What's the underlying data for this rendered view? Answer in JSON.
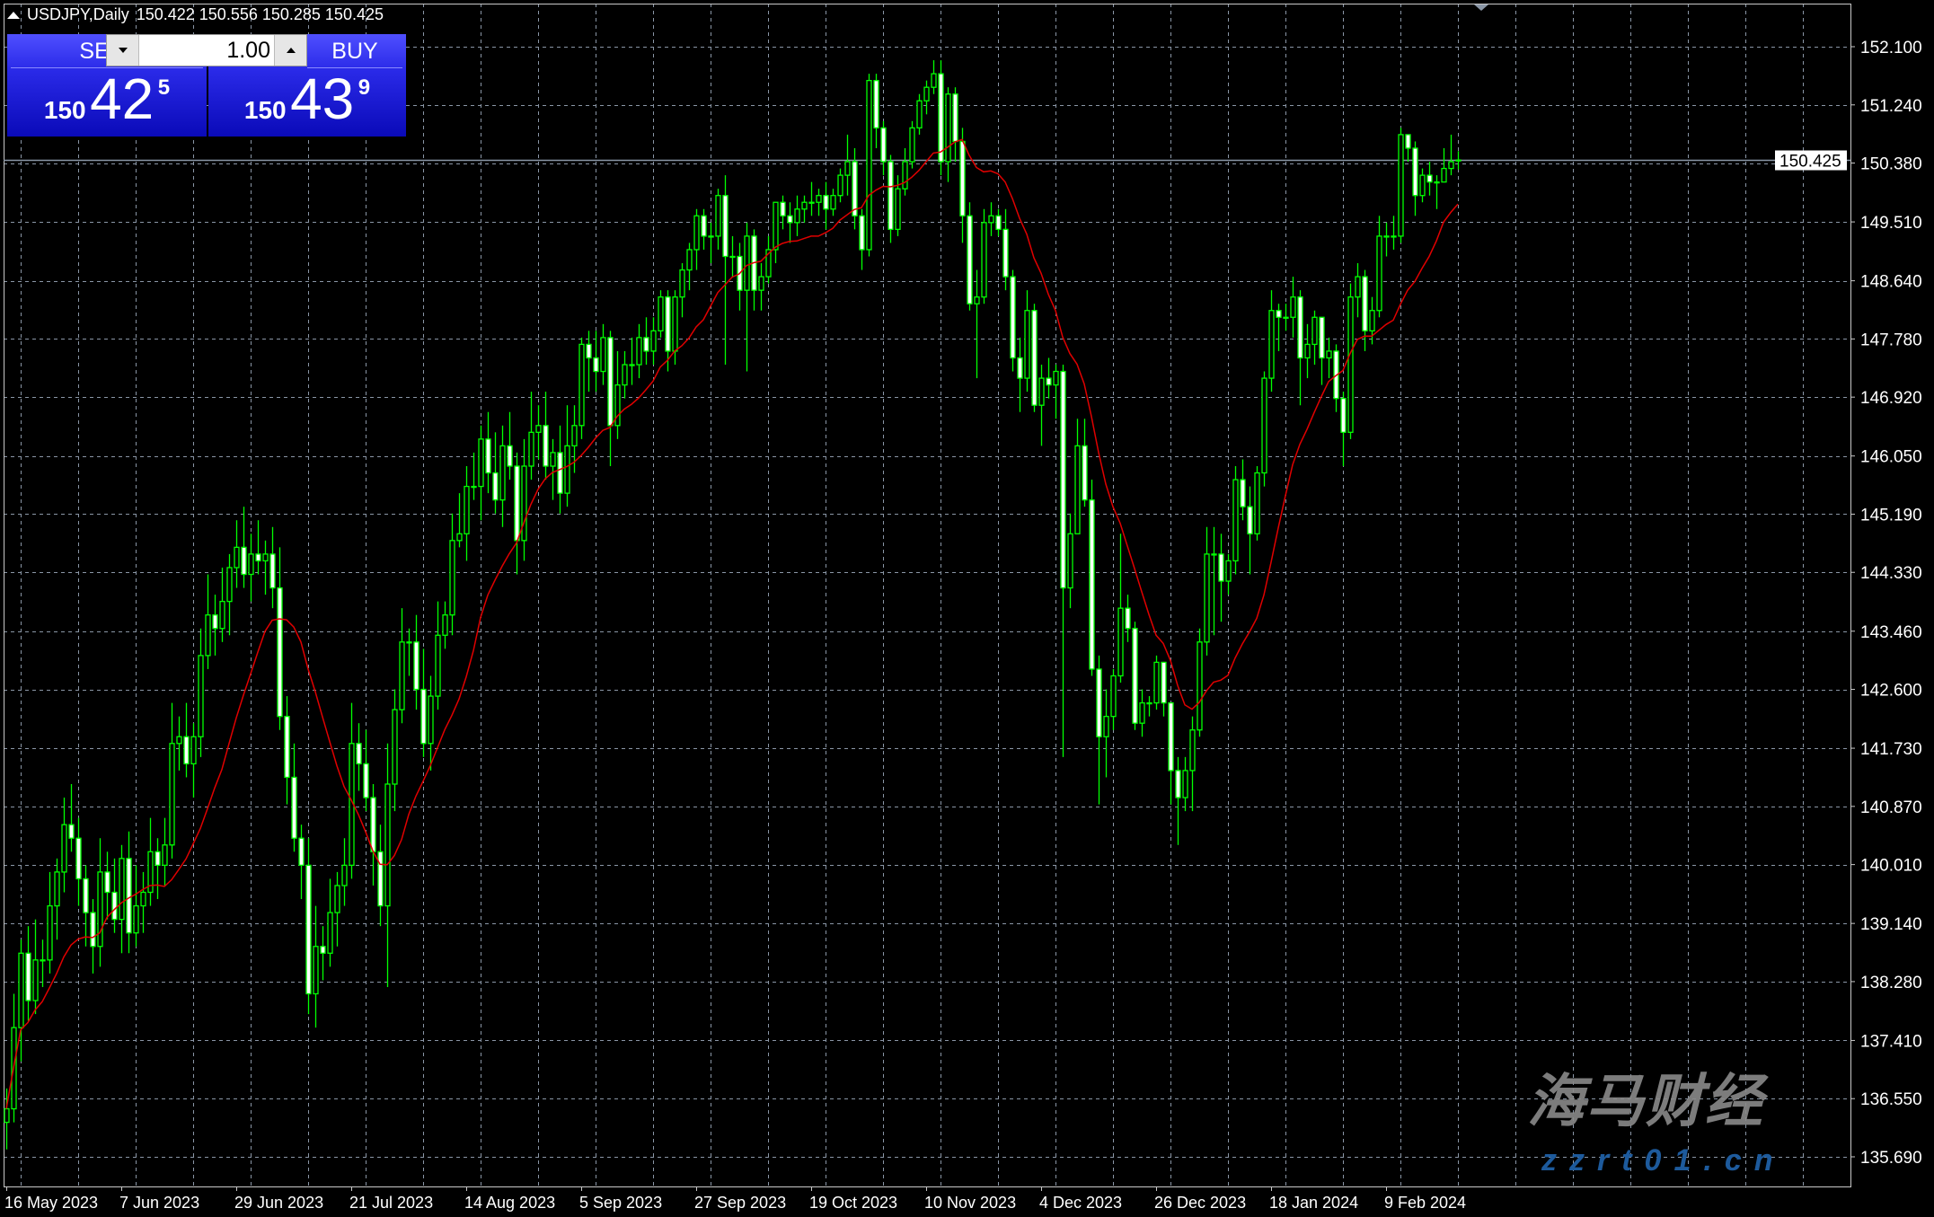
{
  "header": {
    "symbol_timeframe": "USDJPY,Daily",
    "ohlc": "150.422 150.556 150.285 150.425"
  },
  "trade_panel": {
    "sell_label": "SELL",
    "buy_label": "BUY",
    "lot_value": "1.00",
    "sell_price": {
      "prefix": "150",
      "big": "42",
      "sup": "5"
    },
    "buy_price": {
      "prefix": "150",
      "big": "43",
      "sup": "9"
    }
  },
  "colors": {
    "background": "#000000",
    "grid": "#8a96a6",
    "candle": "#00ff00",
    "bull_body": "#000000",
    "bear_body": "#ffffff",
    "ma": "#e00000",
    "current_price_line": "#8a96a6",
    "panel_blue": "#2a2ae8"
  },
  "watermark": {
    "cn": "海马财经",
    "url": "zzrt01.cn"
  },
  "chart_data": {
    "type": "candlestick",
    "symbol": "USDJPY",
    "timeframe": "Daily",
    "current_price": "150.425",
    "ylim": [
      135.2,
      152.8
    ],
    "y_ticks": [
      "152.100",
      "151.240",
      "150.380",
      "149.510",
      "148.640",
      "147.780",
      "146.920",
      "146.050",
      "145.190",
      "144.330",
      "143.460",
      "142.600",
      "141.730",
      "140.870",
      "140.010",
      "139.140",
      "138.280",
      "137.410",
      "136.550",
      "135.690"
    ],
    "x_tick_labels": [
      "16 May 2023",
      "7 Jun 2023",
      "29 Jun 2023",
      "21 Jul 2023",
      "14 Aug 2023",
      "5 Sep 2023",
      "27 Sep 2023",
      "19 Oct 2023",
      "10 Nov 2023",
      "4 Dec 2023",
      "26 Dec 2023",
      "18 Jan 2024",
      "9 Feb 2024"
    ],
    "grid": true,
    "moving_average": {
      "type": "SMA",
      "period": 14
    },
    "candles_ohlc": [
      [
        136.2,
        136.7,
        135.8,
        136.4
      ],
      [
        136.4,
        138.1,
        136.2,
        137.6
      ],
      [
        137.6,
        138.9,
        137.1,
        138.7
      ],
      [
        138.7,
        139.1,
        137.7,
        138.0
      ],
      [
        138.0,
        139.2,
        137.8,
        138.6
      ],
      [
        138.6,
        138.9,
        138.2,
        138.6
      ],
      [
        138.6,
        139.9,
        138.4,
        139.4
      ],
      [
        139.4,
        140.1,
        138.9,
        139.9
      ],
      [
        139.9,
        141.0,
        139.6,
        140.6
      ],
      [
        140.6,
        141.2,
        140.2,
        140.4
      ],
      [
        140.4,
        140.7,
        139.4,
        139.8
      ],
      [
        139.8,
        140.0,
        138.8,
        139.3
      ],
      [
        139.3,
        139.5,
        138.4,
        138.8
      ],
      [
        138.8,
        140.4,
        138.5,
        139.9
      ],
      [
        139.9,
        140.2,
        139.2,
        139.6
      ],
      [
        139.6,
        140.1,
        139.0,
        139.2
      ],
      [
        139.2,
        140.3,
        138.7,
        140.1
      ],
      [
        140.1,
        140.5,
        138.7,
        139.0
      ],
      [
        139.0,
        140.0,
        138.8,
        139.4
      ],
      [
        139.4,
        139.9,
        139.0,
        139.6
      ],
      [
        139.6,
        140.7,
        139.4,
        140.2
      ],
      [
        140.2,
        140.4,
        139.5,
        140.0
      ],
      [
        140.0,
        140.7,
        139.7,
        140.3
      ],
      [
        140.3,
        142.4,
        140.1,
        141.8
      ],
      [
        141.8,
        142.2,
        141.4,
        141.9
      ],
      [
        141.9,
        142.4,
        141.3,
        141.5
      ],
      [
        141.5,
        142.1,
        141.0,
        141.9
      ],
      [
        141.9,
        143.5,
        141.6,
        143.1
      ],
      [
        143.1,
        144.3,
        142.9,
        143.7
      ],
      [
        143.7,
        144.0,
        143.1,
        143.5
      ],
      [
        143.5,
        144.4,
        143.3,
        143.9
      ],
      [
        143.9,
        144.6,
        143.4,
        144.4
      ],
      [
        144.4,
        145.1,
        144.1,
        144.7
      ],
      [
        144.7,
        145.3,
        144.1,
        144.3
      ],
      [
        144.3,
        144.9,
        143.9,
        144.6
      ],
      [
        144.6,
        145.1,
        144.3,
        144.5
      ],
      [
        144.5,
        144.8,
        144.0,
        144.6
      ],
      [
        144.6,
        145.0,
        143.8,
        144.1
      ],
      [
        144.1,
        144.7,
        142.0,
        142.2
      ],
      [
        142.2,
        142.5,
        140.9,
        141.3
      ],
      [
        141.3,
        141.8,
        140.2,
        140.4
      ],
      [
        140.4,
        140.6,
        139.5,
        140.0
      ],
      [
        140.0,
        140.4,
        137.8,
        138.1
      ],
      [
        138.1,
        139.4,
        137.6,
        138.8
      ],
      [
        138.8,
        139.1,
        138.3,
        138.7
      ],
      [
        138.7,
        139.8,
        138.5,
        139.3
      ],
      [
        139.3,
        139.9,
        138.8,
        139.7
      ],
      [
        139.7,
        140.4,
        139.4,
        140.0
      ],
      [
        140.0,
        142.4,
        139.8,
        141.8
      ],
      [
        141.8,
        142.1,
        141.1,
        141.5
      ],
      [
        141.5,
        142.0,
        140.8,
        141.0
      ],
      [
        141.0,
        141.2,
        139.7,
        140.2
      ],
      [
        140.2,
        140.6,
        139.1,
        139.4
      ],
      [
        139.4,
        141.8,
        138.2,
        141.2
      ],
      [
        141.2,
        142.6,
        140.8,
        142.3
      ],
      [
        142.3,
        143.8,
        142.1,
        143.3
      ],
      [
        143.3,
        143.5,
        142.8,
        143.3
      ],
      [
        143.3,
        143.7,
        142.3,
        142.6
      ],
      [
        142.6,
        143.2,
        141.6,
        141.8
      ],
      [
        141.8,
        142.8,
        141.4,
        142.5
      ],
      [
        142.5,
        143.9,
        142.3,
        143.4
      ],
      [
        143.4,
        143.9,
        143.2,
        143.7
      ],
      [
        143.7,
        145.2,
        143.4,
        144.8
      ],
      [
        144.8,
        145.5,
        144.7,
        144.9
      ],
      [
        144.9,
        145.9,
        144.5,
        145.6
      ],
      [
        145.6,
        146.1,
        145.4,
        145.6
      ],
      [
        145.6,
        146.5,
        145.1,
        146.3
      ],
      [
        146.3,
        146.7,
        145.5,
        145.8
      ],
      [
        145.8,
        146.4,
        145.2,
        145.4
      ],
      [
        145.4,
        146.5,
        145.0,
        146.2
      ],
      [
        146.2,
        146.7,
        145.7,
        145.9
      ],
      [
        145.9,
        146.1,
        144.3,
        144.8
      ],
      [
        144.8,
        146.3,
        144.5,
        145.9
      ],
      [
        145.9,
        147.0,
        145.7,
        146.4
      ],
      [
        146.4,
        146.8,
        146.0,
        146.5
      ],
      [
        146.5,
        147.0,
        145.7,
        145.9
      ],
      [
        145.9,
        146.3,
        145.4,
        146.1
      ],
      [
        146.1,
        146.5,
        145.2,
        145.5
      ],
      [
        145.5,
        146.8,
        145.3,
        146.2
      ],
      [
        146.2,
        146.8,
        145.8,
        146.5
      ],
      [
        146.5,
        147.8,
        146.3,
        147.7
      ],
      [
        147.7,
        147.9,
        147.0,
        147.5
      ],
      [
        147.5,
        147.9,
        147.0,
        147.3
      ],
      [
        147.3,
        148.0,
        147.1,
        147.8
      ],
      [
        147.8,
        147.9,
        145.9,
        146.5
      ],
      [
        146.5,
        147.6,
        146.3,
        147.1
      ],
      [
        147.1,
        147.6,
        146.9,
        147.4
      ],
      [
        147.4,
        147.8,
        147.1,
        147.4
      ],
      [
        147.4,
        148.0,
        147.2,
        147.8
      ],
      [
        147.8,
        148.1,
        147.4,
        147.6
      ],
      [
        147.6,
        148.1,
        147.4,
        147.9
      ],
      [
        147.9,
        148.5,
        147.8,
        148.4
      ],
      [
        148.4,
        148.5,
        147.3,
        147.6
      ],
      [
        147.6,
        148.5,
        147.4,
        148.4
      ],
      [
        148.4,
        148.9,
        148.1,
        148.8
      ],
      [
        148.8,
        149.2,
        148.5,
        149.1
      ],
      [
        149.1,
        149.7,
        148.8,
        149.6
      ],
      [
        149.6,
        149.7,
        149.1,
        149.3
      ],
      [
        149.3,
        149.5,
        148.9,
        149.3
      ],
      [
        149.3,
        150.0,
        149.1,
        149.9
      ],
      [
        149.9,
        150.2,
        147.4,
        149.0
      ],
      [
        149.0,
        149.3,
        148.7,
        149.0
      ],
      [
        149.0,
        149.2,
        148.2,
        148.5
      ],
      [
        148.5,
        149.5,
        147.3,
        149.3
      ],
      [
        149.3,
        149.4,
        148.2,
        148.5
      ],
      [
        148.5,
        148.9,
        148.2,
        148.7
      ],
      [
        148.7,
        149.3,
        148.6,
        149.1
      ],
      [
        149.1,
        149.8,
        148.9,
        149.8
      ],
      [
        149.8,
        149.9,
        149.4,
        149.6
      ],
      [
        149.6,
        149.8,
        149.2,
        149.5
      ],
      [
        149.5,
        149.9,
        149.3,
        149.7
      ],
      [
        149.7,
        149.9,
        149.5,
        149.8
      ],
      [
        149.8,
        150.1,
        149.6,
        149.8
      ],
      [
        149.8,
        150.0,
        149.6,
        149.9
      ],
      [
        149.9,
        150.1,
        149.4,
        149.7
      ],
      [
        149.7,
        150.0,
        149.6,
        149.9
      ],
      [
        149.9,
        150.3,
        149.8,
        150.2
      ],
      [
        150.2,
        150.8,
        149.9,
        150.4
      ],
      [
        150.4,
        150.6,
        149.4,
        149.6
      ],
      [
        149.6,
        149.7,
        148.8,
        149.1
      ],
      [
        149.1,
        151.7,
        149.0,
        151.6
      ],
      [
        151.6,
        151.7,
        150.6,
        150.9
      ],
      [
        150.9,
        151.0,
        150.2,
        150.4
      ],
      [
        150.4,
        150.5,
        149.2,
        149.4
      ],
      [
        149.4,
        150.2,
        149.3,
        150.0
      ],
      [
        150.0,
        150.6,
        149.9,
        150.4
      ],
      [
        150.4,
        151.0,
        150.3,
        150.9
      ],
      [
        150.9,
        151.4,
        150.8,
        151.3
      ],
      [
        151.3,
        151.6,
        151.1,
        151.5
      ],
      [
        151.5,
        151.9,
        151.4,
        151.7
      ],
      [
        151.7,
        151.9,
        150.2,
        150.4
      ],
      [
        150.4,
        151.5,
        150.1,
        151.4
      ],
      [
        151.4,
        151.5,
        150.4,
        150.7
      ],
      [
        150.7,
        150.9,
        149.2,
        149.6
      ],
      [
        149.6,
        149.8,
        148.2,
        148.3
      ],
      [
        148.3,
        148.8,
        147.2,
        148.4
      ],
      [
        148.4,
        149.7,
        148.3,
        149.5
      ],
      [
        149.5,
        149.8,
        149.3,
        149.6
      ],
      [
        149.6,
        149.7,
        149.3,
        149.4
      ],
      [
        149.4,
        149.7,
        148.5,
        148.7
      ],
      [
        148.7,
        148.8,
        147.3,
        147.5
      ],
      [
        147.5,
        147.8,
        146.7,
        147.2
      ],
      [
        147.2,
        148.5,
        147.0,
        148.2
      ],
      [
        148.2,
        148.3,
        146.7,
        146.8
      ],
      [
        146.8,
        147.4,
        146.2,
        147.2
      ],
      [
        147.2,
        147.5,
        146.9,
        147.1
      ],
      [
        147.1,
        147.4,
        146.6,
        147.3
      ],
      [
        147.3,
        147.4,
        141.6,
        144.1
      ],
      [
        144.1,
        145.2,
        143.8,
        144.9
      ],
      [
        144.9,
        146.6,
        144.9,
        146.2
      ],
      [
        146.2,
        146.6,
        145.3,
        145.4
      ],
      [
        145.4,
        145.7,
        142.8,
        142.9
      ],
      [
        142.9,
        143.1,
        140.9,
        141.9
      ],
      [
        141.9,
        142.6,
        141.3,
        142.2
      ],
      [
        142.2,
        142.9,
        142.0,
        142.8
      ],
      [
        142.8,
        144.9,
        142.7,
        143.8
      ],
      [
        143.8,
        144.0,
        143.3,
        143.5
      ],
      [
        143.5,
        143.6,
        142.0,
        142.1
      ],
      [
        142.1,
        142.6,
        141.9,
        142.4
      ],
      [
        142.4,
        142.5,
        142.2,
        142.4
      ],
      [
        142.4,
        143.1,
        142.3,
        143.0
      ],
      [
        143.0,
        143.0,
        142.2,
        142.4
      ],
      [
        142.4,
        142.4,
        140.9,
        141.4
      ],
      [
        141.4,
        141.6,
        140.3,
        141.0
      ],
      [
        141.0,
        141.6,
        140.8,
        141.4
      ],
      [
        141.4,
        142.2,
        140.8,
        142.0
      ],
      [
        142.0,
        143.5,
        141.9,
        143.3
      ],
      [
        143.3,
        145.0,
        143.1,
        144.6
      ],
      [
        144.6,
        145.0,
        143.4,
        144.6
      ],
      [
        144.6,
        144.9,
        143.6,
        144.2
      ],
      [
        144.2,
        144.6,
        144.0,
        144.5
      ],
      [
        144.5,
        145.9,
        144.3,
        145.7
      ],
      [
        145.7,
        146.0,
        145.1,
        145.3
      ],
      [
        145.3,
        145.6,
        144.3,
        144.9
      ],
      [
        144.9,
        145.9,
        144.8,
        145.8
      ],
      [
        145.8,
        147.3,
        145.6,
        147.2
      ],
      [
        147.2,
        148.5,
        147.0,
        148.2
      ],
      [
        148.2,
        148.3,
        147.6,
        148.1
      ],
      [
        148.1,
        148.3,
        147.9,
        148.1
      ],
      [
        148.1,
        148.7,
        147.8,
        148.4
      ],
      [
        148.4,
        148.5,
        146.8,
        147.5
      ],
      [
        147.5,
        148.0,
        147.2,
        147.7
      ],
      [
        147.7,
        148.2,
        147.4,
        148.1
      ],
      [
        148.1,
        148.1,
        147.1,
        147.5
      ],
      [
        147.5,
        147.8,
        147.2,
        147.6
      ],
      [
        147.6,
        147.7,
        146.7,
        146.9
      ],
      [
        146.9,
        147.0,
        145.9,
        146.4
      ],
      [
        146.4,
        148.6,
        146.3,
        148.4
      ],
      [
        148.4,
        148.9,
        148.1,
        148.7
      ],
      [
        148.7,
        148.8,
        147.6,
        147.9
      ],
      [
        147.9,
        148.4,
        147.7,
        148.2
      ],
      [
        148.2,
        149.6,
        148.1,
        149.3
      ],
      [
        149.3,
        149.5,
        149.0,
        149.3
      ],
      [
        149.3,
        149.6,
        149.1,
        149.3
      ],
      [
        149.3,
        150.9,
        149.2,
        150.8
      ],
      [
        150.8,
        150.8,
        150.4,
        150.6
      ],
      [
        150.6,
        150.7,
        149.6,
        149.9
      ],
      [
        149.9,
        150.3,
        149.8,
        150.2
      ],
      [
        150.2,
        150.4,
        149.9,
        150.1
      ],
      [
        150.1,
        150.2,
        149.7,
        150.1
      ],
      [
        150.1,
        150.6,
        150.1,
        150.3
      ],
      [
        150.3,
        150.8,
        150.2,
        150.4
      ],
      [
        150.422,
        150.556,
        150.285,
        150.425
      ]
    ]
  }
}
